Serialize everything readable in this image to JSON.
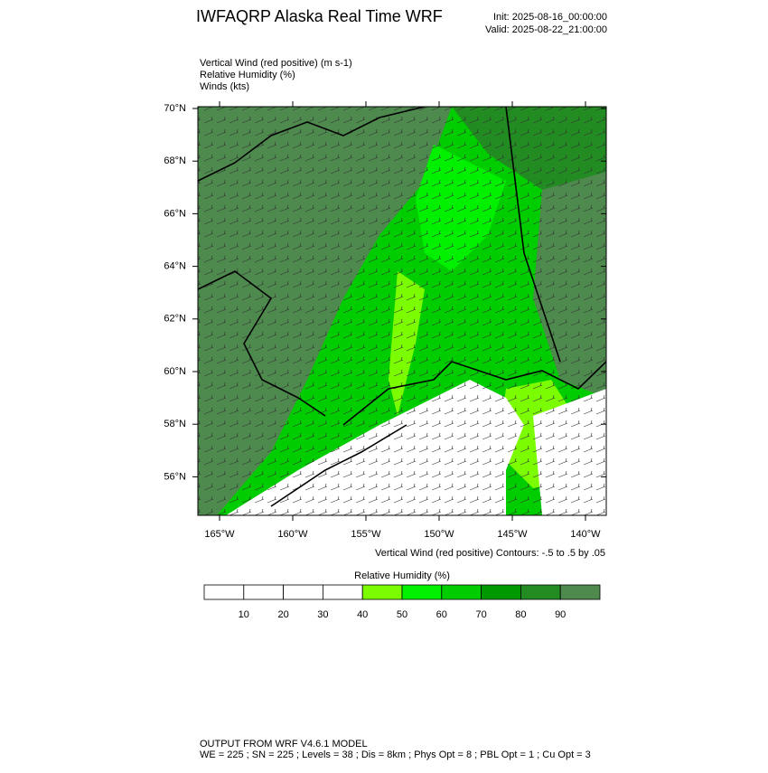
{
  "header": {
    "title": "IWFAQRP Alaska Real Time WRF",
    "init": "Init: 2025-08-16_00:00:00",
    "valid": "Valid: 2025-08-22_21:00:00"
  },
  "fields": [
    "Vertical Wind (red positive)   (m s-1)",
    "Relative Humidity   (%)",
    "Winds   (kts)"
  ],
  "map": {
    "lat_labels": [
      "70°N",
      "68°N",
      "66°N",
      "64°N",
      "62°N",
      "60°N",
      "58°N",
      "56°N"
    ],
    "lon_labels": [
      "165°W",
      "160°W",
      "155°W",
      "150°W",
      "145°W",
      "140°W"
    ],
    "contour_note": "Vertical Wind (red positive) Contours: -.5 to .5 by .05"
  },
  "colorbar": {
    "title": "Relative Humidity  (%)",
    "colors": [
      "#ffffff",
      "#ffffff",
      "#ffffff",
      "#ffffff",
      "#7cfc00",
      "#00f000",
      "#00cd00",
      "#009a00",
      "#228b22",
      "#4e8a4e"
    ],
    "labels": [
      10,
      20,
      30,
      40,
      50,
      60,
      70,
      80,
      90
    ]
  },
  "footer": {
    "line1": "OUTPUT FROM WRF V4.6.1 MODEL",
    "line2": "WE = 225 ; SN = 225 ; Levels = 38 ; Dis = 8km ; Phys Opt = 8 ; PBL Opt = 1 ; Cu Opt = 3"
  }
}
